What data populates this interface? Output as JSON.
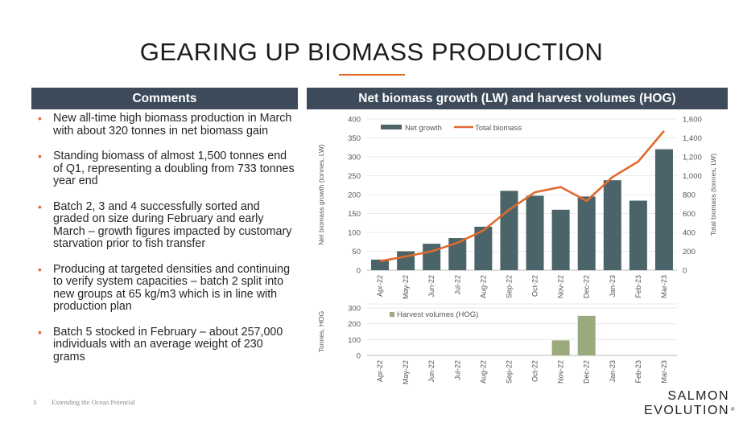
{
  "slide": {
    "title": "GEARING UP BIOMASS PRODUCTION",
    "comments_header": "Comments",
    "chart_header": "Net biomass growth (LW) and harvest volumes (HOG)",
    "bullets": [
      "New all-time high biomass production in March with about 320 tonnes in net biomass gain",
      "Standing biomass of almost 1,500 tonnes end of Q1, representing a doubling from 733 tonnes year end",
      "Batch 2, 3 and 4 successfully sorted and graded on size during February and early March – growth figures impacted by customary starvation prior to fish transfer",
      "Producing at targeted densities and continuing to verify system capacities – batch 2 split into new groups at 65 kg/m3 which is in line with production plan",
      "Batch 5 stocked in February – about 257,000 individuals with an average weight of 230 grams"
    ],
    "footer_page": "3",
    "footer_text": "Extending the Ocean Potential",
    "logo_line1": "SALMON",
    "logo_line2": "EVOLUTION",
    "logo_mark": "®"
  },
  "colors": {
    "header_bg": "#3c4a5a",
    "accent": "#e06a2c",
    "net_growth": "#4a6469",
    "total_biomass": "#e06a2c",
    "harvest": "#9aaa7c"
  },
  "chart_data": [
    {
      "type": "bar",
      "categories": [
        "Apr-22",
        "May-22",
        "Jun-22",
        "Jul-22",
        "Aug-22",
        "Sep-22",
        "Oct-22",
        "Nov-22",
        "Dec-22",
        "Jan-23",
        "Feb-23",
        "Mar-23"
      ],
      "ylabel": "Net biomass growth (tonnes, LW)",
      "y2label": "Total biomass (tonnes, LW)",
      "ylim": [
        0,
        400
      ],
      "y2lim": [
        0,
        1600
      ],
      "yticks": [
        "0",
        "50",
        "100",
        "150",
        "200",
        "250",
        "300",
        "350",
        "400"
      ],
      "y2ticks": [
        "0",
        "200",
        "400",
        "600",
        "800",
        "1,000",
        "1,200",
        "1,400",
        "1,600"
      ],
      "legend_position": "top-left",
      "series": [
        {
          "name": "Net growth",
          "type": "bar",
          "axis": "left",
          "values": [
            28,
            50,
            70,
            85,
            115,
            210,
            197,
            160,
            195,
            238,
            184,
            320
          ]
        },
        {
          "name": "Total biomass",
          "type": "line",
          "axis": "right",
          "values": [
            95,
            145,
            200,
            290,
            420,
            640,
            825,
            880,
            733,
            985,
            1150,
            1475
          ]
        }
      ]
    },
    {
      "type": "bar",
      "categories": [
        "Apr-22",
        "May-22",
        "Jun-22",
        "Jul-22",
        "Aug-22",
        "Sep-22",
        "Oct-22",
        "Nov-22",
        "Dec-22",
        "Jan-23",
        "Feb-23",
        "Mar-23"
      ],
      "ylabel": "Tonnes, HOG",
      "ylim": [
        0,
        300
      ],
      "yticks": [
        "0",
        "100",
        "200",
        "300"
      ],
      "legend_position": "top-left",
      "series": [
        {
          "name": "Harvest volumes (HOG)",
          "values": [
            0,
            0,
            0,
            0,
            0,
            0,
            0,
            95,
            250,
            0,
            0,
            0
          ]
        }
      ]
    }
  ]
}
